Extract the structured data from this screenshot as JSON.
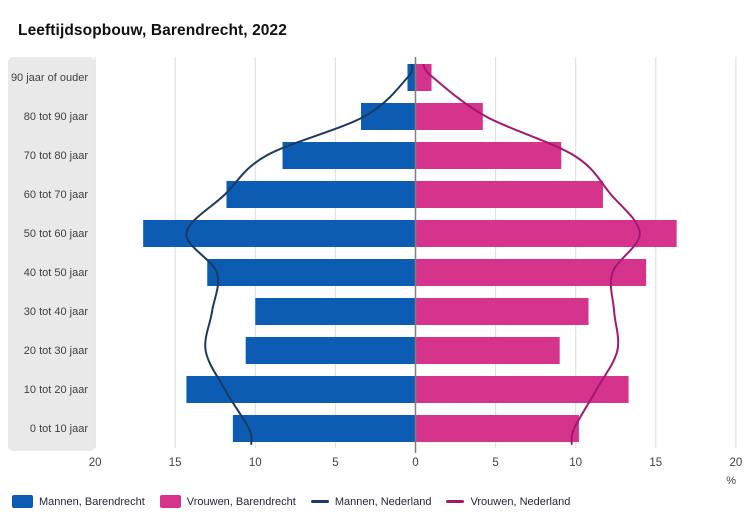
{
  "title": "Leeftijdsopbouw, Barendrecht, 2022",
  "axis": {
    "unit_label": "%",
    "tick_labels": [
      "20",
      "15",
      "10",
      "5",
      "0",
      "5",
      "10",
      "15",
      "20"
    ],
    "tick_values": [
      -20,
      -15,
      -10,
      -5,
      0,
      5,
      10,
      15,
      20
    ]
  },
  "chart_data": {
    "type": "bar",
    "subtype": "population-pyramid",
    "title": "Leeftijdsopbouw, Barendrecht, 2022",
    "categories": [
      "90 jaar of ouder",
      "80 tot 90 jaar",
      "70 tot 80 jaar",
      "60 tot 70 jaar",
      "50 tot 60 jaar",
      "40 tot 50 jaar",
      "30 tot 40 jaar",
      "20 tot 30 jaar",
      "10 tot 20 jaar",
      "0 tot 10 jaar"
    ],
    "xlabel": "%",
    "xlim": [
      -20,
      20
    ],
    "grid": true,
    "legend_position": "bottom",
    "series": [
      {
        "name": "Mannen, Barendrecht",
        "kind": "bar",
        "side": "left",
        "color": "#0d5cb4",
        "values": [
          0.5,
          3.4,
          8.3,
          11.8,
          17.0,
          13.0,
          10.0,
          10.6,
          14.3,
          11.4
        ]
      },
      {
        "name": "Vrouwen, Barendrecht",
        "kind": "bar",
        "side": "right",
        "color": "#d6338d",
        "values": [
          1.0,
          4.2,
          9.1,
          11.7,
          16.3,
          14.4,
          10.8,
          9.0,
          13.3,
          10.2
        ]
      },
      {
        "name": "Mannen, Nederland",
        "kind": "line",
        "side": "left",
        "color": "#1b3a5f",
        "values": [
          0.5,
          3.2,
          9.3,
          11.9,
          14.3,
          12.4,
          12.7,
          13.1,
          11.9,
          10.4
        ]
      },
      {
        "name": "Vrouwen, Nederland",
        "kind": "line",
        "side": "right",
        "color": "#a21870",
        "values": [
          1.1,
          4.4,
          9.9,
          12.2,
          14.0,
          12.3,
          12.4,
          12.6,
          11.3,
          9.9
        ]
      }
    ],
    "colors": {
      "grid": "#dcdcdc",
      "center_axis": "#7f7f7f",
      "label_band": "#e9e9e9",
      "tick_text": "#404040"
    }
  }
}
